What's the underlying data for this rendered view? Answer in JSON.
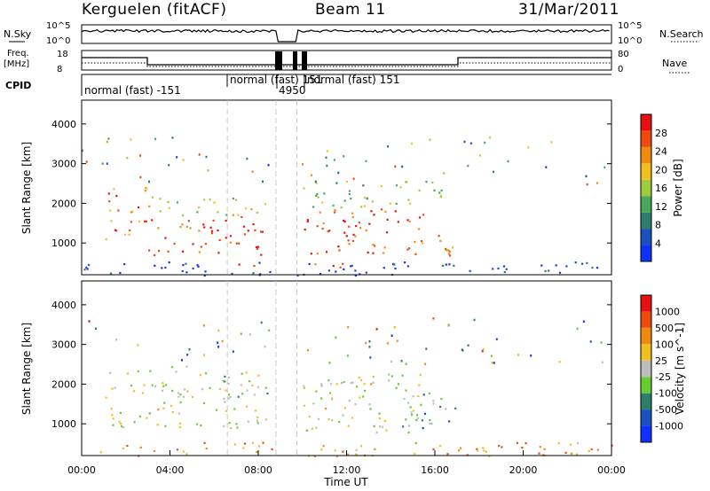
{
  "header": {
    "station": "Kerguelen",
    "algorithm": "(fitACF)",
    "beam": "Beam 11",
    "date": "31/Mar/2011"
  },
  "top_panels": {
    "nsky_label": "N.Sky",
    "nsky_ticks": [
      "10^5",
      "10^0"
    ],
    "nsearch_label": "N.Search",
    "nsearch_ticks": [
      "10^5",
      "10^0"
    ],
    "freq_label": "Freq.",
    "freq_unit": "[MHz]",
    "freq_ticks": [
      "18",
      "8"
    ],
    "nave_label": "Nave",
    "nave_ticks": [
      "80",
      "0"
    ],
    "cpid_label": "CPID",
    "cpid_segments": [
      {
        "label": "normal (fast) -151",
        "start": 0,
        "end": 6.6
      },
      {
        "label": "normal (fast) 151",
        "start": 6.6,
        "end": 8.8
      },
      {
        "label": "4950",
        "start": 8.8,
        "end": 9.7
      },
      {
        "label": "normal (fast) 151",
        "start": 9.7,
        "end": 24
      }
    ]
  },
  "chart_data": [
    {
      "type": "heatmap",
      "title": "Power",
      "ylabel": "Slant Range [km]",
      "xlabel": "Time UT",
      "xlim": [
        0,
        24
      ],
      "ylim": [
        200,
        4600
      ],
      "yticks": [
        "1000",
        "2000",
        "3000",
        "4000"
      ],
      "colorbar_label": "Power [dB]",
      "colorbar_ticks": [
        "4",
        "8",
        "12",
        "16",
        "20",
        "24",
        "28"
      ],
      "colorscale": [
        "#1030ff",
        "#1c4fc0",
        "#2e7d6a",
        "#4aa75a",
        "#9ccc3a",
        "#f0c020",
        "#f08a10",
        "#ef4a10",
        "#e81010"
      ],
      "regions": [
        {
          "t0": 1.0,
          "t1": 3.0,
          "r0": 1100,
          "r1": 2500,
          "level": 0.75
        },
        {
          "t0": 3.0,
          "t1": 8.5,
          "r0": 700,
          "r1": 1700,
          "level": 0.88
        },
        {
          "t0": 3.0,
          "t1": 8.5,
          "r0": 1700,
          "r1": 2200,
          "level": 0.55
        },
        {
          "t0": 10.0,
          "t1": 15.5,
          "r0": 700,
          "r1": 1900,
          "level": 0.85
        },
        {
          "t0": 10.0,
          "t1": 16.5,
          "r0": 1900,
          "r1": 2600,
          "level": 0.5
        },
        {
          "t0": 14.5,
          "t1": 16.8,
          "r0": 700,
          "r1": 1300,
          "level": 0.7
        },
        {
          "t0": 0.0,
          "t1": 24.0,
          "r0": 200,
          "r1": 550,
          "level": 0.12
        },
        {
          "t0": 5.0,
          "t1": 12.5,
          "r0": 400,
          "r1": 520,
          "level": 0.9
        }
      ]
    },
    {
      "type": "heatmap",
      "title": "Velocity",
      "ylabel": "Slant Range [km]",
      "xlabel": "Time UT",
      "xlim": [
        0,
        24
      ],
      "ylim": [
        200,
        4600
      ],
      "yticks": [
        "1000",
        "2000",
        "3000",
        "4000"
      ],
      "xticks": [
        "00:00",
        "04:00",
        "08:00",
        "12:00",
        "16:00",
        "20:00",
        "00:00"
      ],
      "colorbar_label": "Velocity [m s^-1]",
      "colorbar_ticks": [
        "1000",
        "500",
        "100",
        "25",
        "-25",
        "-100",
        "-500",
        "-1000"
      ],
      "colorscale": [
        "#1030ff",
        "#1c4fc0",
        "#2e7d6a",
        "#66cc33",
        "#bdbdbd",
        "#f0c020",
        "#f08a10",
        "#ef4a10",
        "#e81010"
      ],
      "regions": [
        {
          "t0": 1.0,
          "t1": 8.5,
          "r0": 900,
          "r1": 2500,
          "level": 0.5
        },
        {
          "t0": 10.0,
          "t1": 16.0,
          "r0": 800,
          "r1": 2300,
          "level": 0.5
        },
        {
          "t0": 14.5,
          "t1": 17.0,
          "r0": 900,
          "r1": 1800,
          "level": 0.35
        },
        {
          "t0": 0.0,
          "t1": 24.0,
          "r0": 200,
          "r1": 550,
          "level": 0.7
        }
      ]
    }
  ],
  "colors": {
    "gap_line": "#c8c8c8",
    "axis": "#000000"
  }
}
